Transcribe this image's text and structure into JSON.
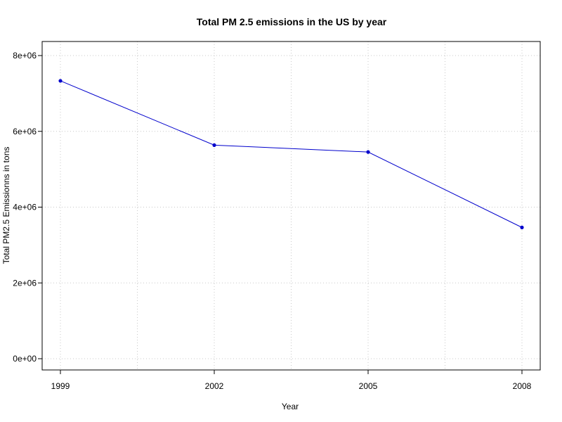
{
  "chart_data": {
    "type": "line",
    "title": "Total PM 2.5 emissions in the US by year",
    "xlabel": "Year",
    "ylabel": "Total PM2.5 Emissionns in tons",
    "x": [
      1999,
      2002,
      2005,
      2008
    ],
    "y": [
      7332967,
      5635780,
      5454703,
      3464206
    ],
    "xlim": [
      1999,
      2008
    ],
    "ylim": [
      0,
      8000000
    ],
    "x_ticks": [
      1999,
      2002,
      2005,
      2008
    ],
    "x_tick_labels": [
      "1999",
      "2002",
      "2005",
      "2008"
    ],
    "y_ticks": [
      0,
      2000000,
      4000000,
      6000000,
      8000000
    ],
    "y_tick_labels": [
      "0e+00",
      "2e+06",
      "4e+06",
      "6e+06",
      "8e+06"
    ],
    "grid": true,
    "colors": {
      "line": "#0000cc",
      "grid": "#c8c8c8"
    }
  }
}
